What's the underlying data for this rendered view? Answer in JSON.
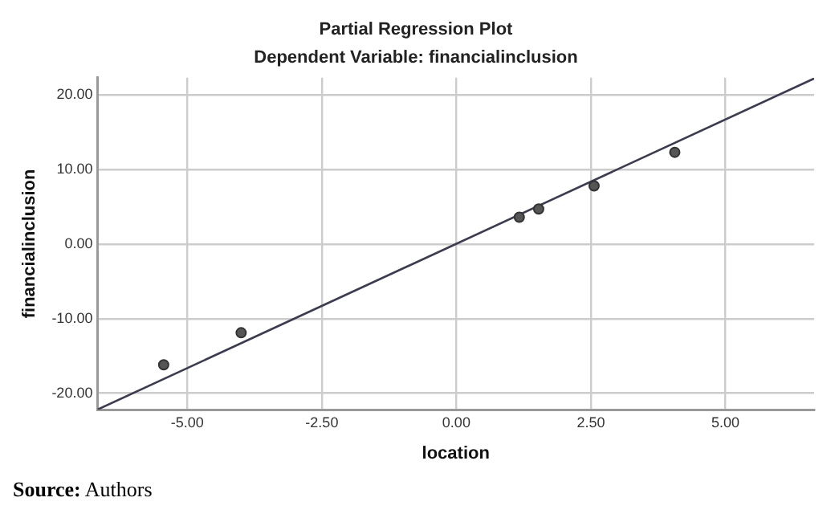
{
  "chart_data": {
    "type": "scatter",
    "title": "Partial Regression Plot",
    "subtitle": "Dependent Variable: financialinclusion",
    "xlabel": "location",
    "ylabel": "financialinclusion",
    "annotations": [
      "Source: Authors"
    ],
    "series": [
      {
        "color": "#555555",
        "x": [
          -5.44,
          -4.0,
          1.17,
          1.53,
          2.56,
          4.06
        ],
        "values": [
          -16.2,
          -11.9,
          3.6,
          4.7,
          7.8,
          12.3
        ]
      },
      {
        "type": "line",
        "marker": "none",
        "color": "#3c3c50",
        "x": [
          -6.67,
          6.65
        ],
        "values": [
          -22.2,
          22.2
        ]
      }
    ],
    "xlim": [
      -6.67,
      6.65
    ],
    "ylim": [
      -22.2,
      22.3
    ],
    "xticks": [
      {
        "value": -5,
        "label": "-5.00"
      },
      {
        "value": -2.5,
        "label": "-2.50"
      },
      {
        "value": 0,
        "label": "0.00"
      },
      {
        "value": 2.5,
        "label": "2.50"
      },
      {
        "value": 5,
        "label": "5.00"
      }
    ],
    "yticks": [
      {
        "value": -20,
        "label": "-20.00"
      },
      {
        "value": -10,
        "label": "-10.00"
      },
      {
        "value": 0,
        "label": "0.00"
      },
      {
        "value": 10,
        "label": "10.00"
      },
      {
        "value": 20,
        "label": "20.00"
      }
    ],
    "grid": true,
    "legend": false,
    "marker": "circle",
    "line_style": "solid"
  }
}
